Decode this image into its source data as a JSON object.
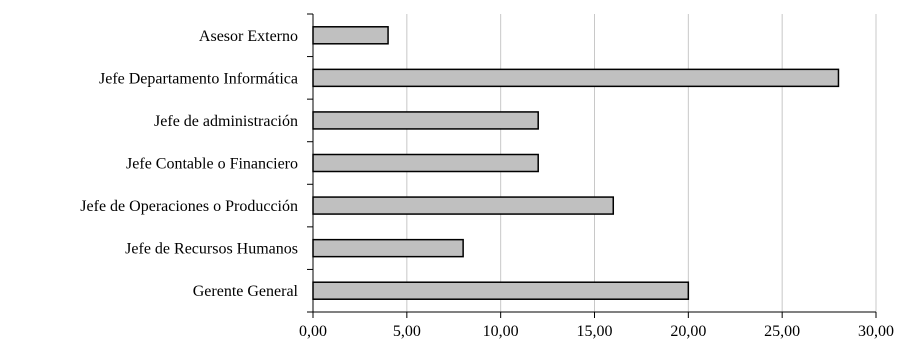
{
  "chart_data": {
    "type": "bar",
    "orientation": "horizontal",
    "categories": [
      "Asesor Externo",
      "Jefe Departamento Informática",
      "Jefe de administración",
      "Jefe Contable o Financiero",
      "Jefe de Operaciones o Producción",
      "Jefe de Recursos Humanos",
      "Gerente General"
    ],
    "values": [
      4,
      28,
      12,
      12,
      16,
      8,
      20
    ],
    "xlim": [
      0,
      30
    ],
    "x_ticks": [
      0,
      5,
      10,
      15,
      20,
      25,
      30
    ],
    "x_tick_labels": [
      "0,00",
      "5,00",
      "10,00",
      "15,00",
      "20,00",
      "25,00",
      "30,00"
    ],
    "grid": "vertical",
    "bar_color": "#c0c0c0",
    "bar_edge_color": "#000000"
  }
}
